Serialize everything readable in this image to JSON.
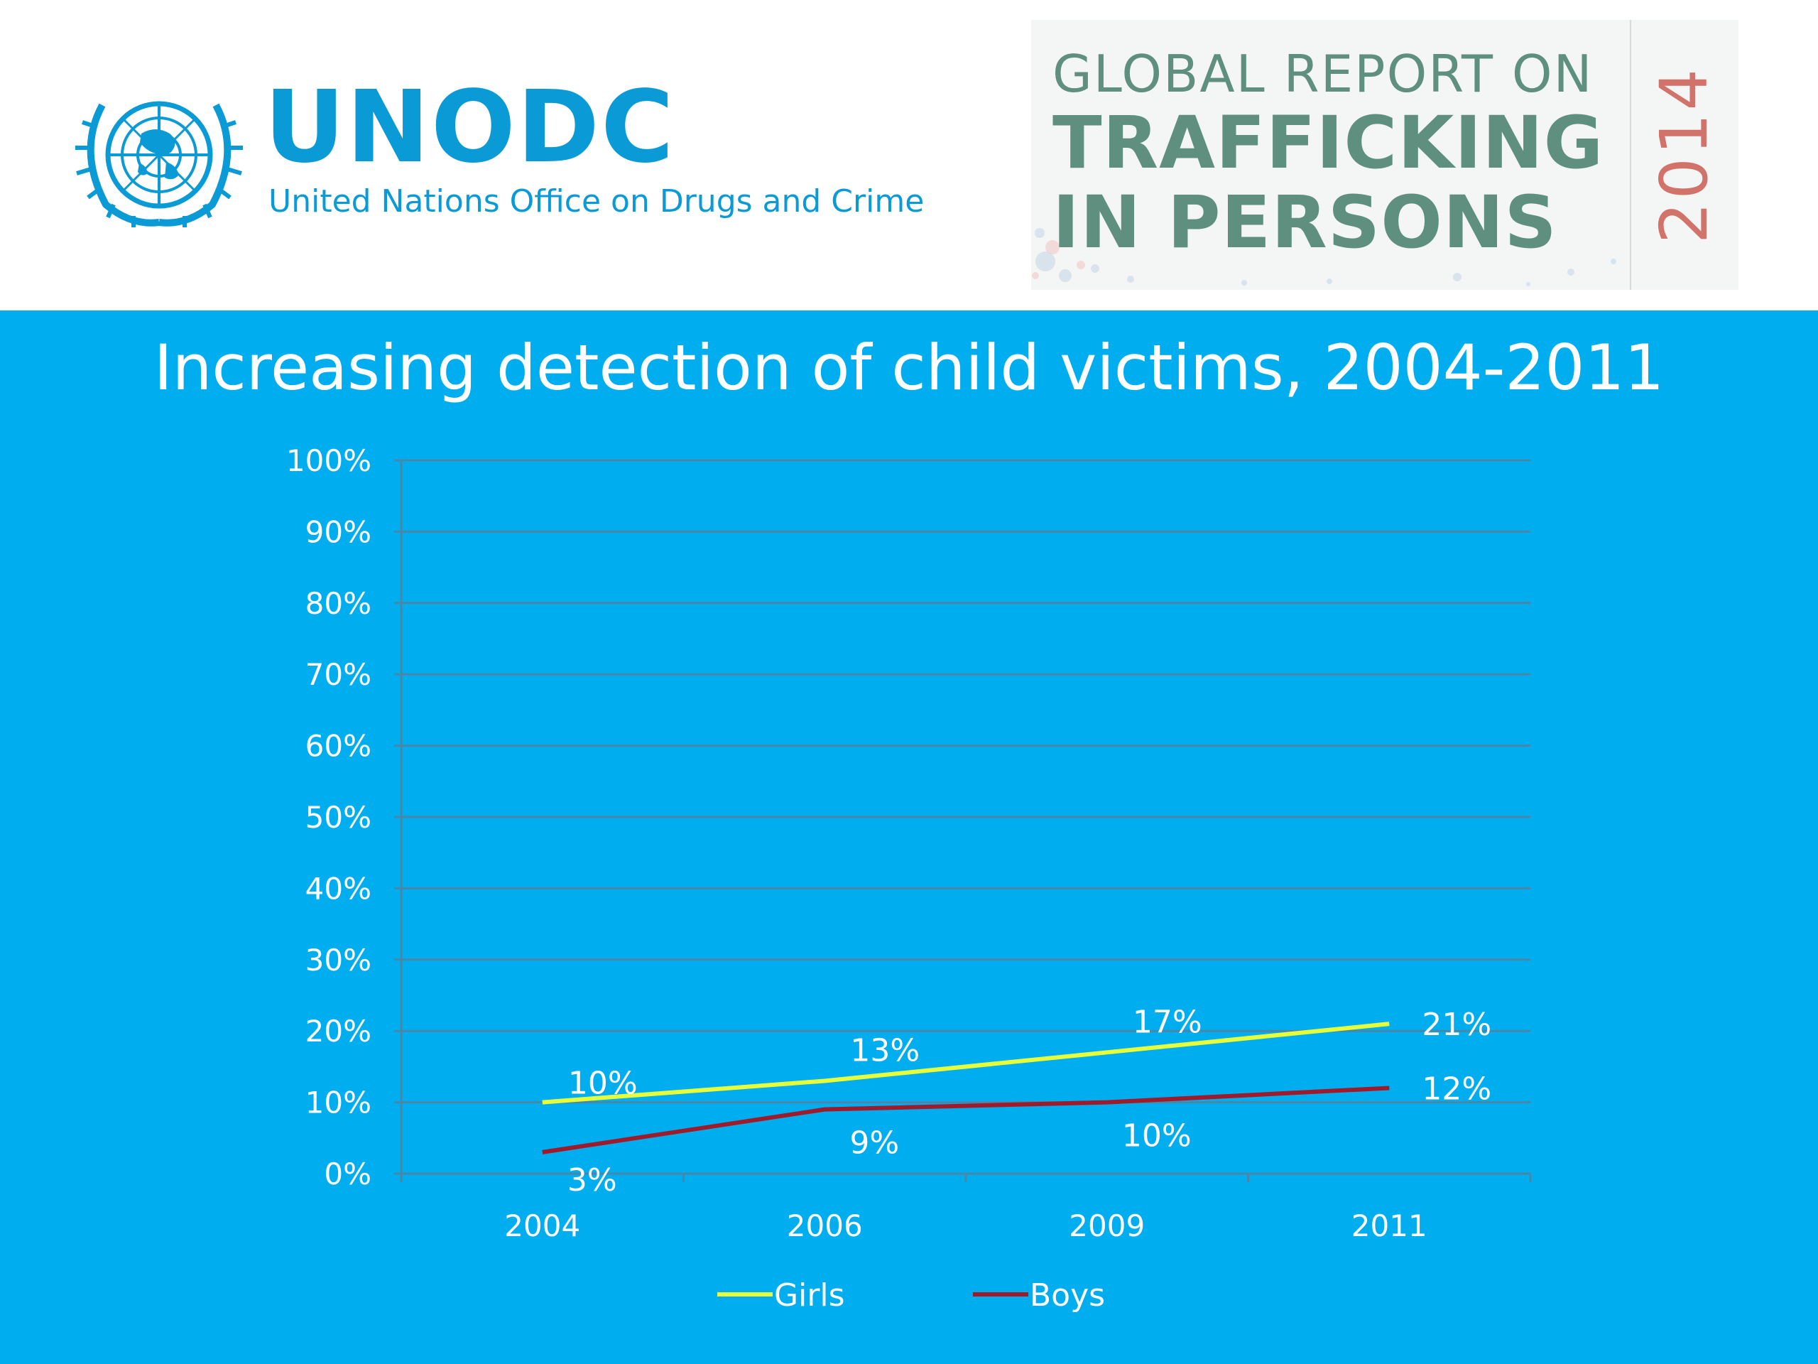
{
  "header": {
    "org_acronym": "UNODC",
    "org_name": "United Nations Office on Drugs and Crime",
    "emblem_icon": "un-emblem-icon",
    "report_line1": "GLOBAL REPORT ON",
    "report_line2": "TRAFFICKING",
    "report_line3": "IN PERSONS",
    "report_year": "2014"
  },
  "colors": {
    "panel_bg": "#00aeef",
    "brand_blue": "#0a9ad6",
    "report_green": "#5f8f7e",
    "report_year": "#d2736b",
    "girls_line": "#e6ff3a",
    "boys_line": "#9e1b2c",
    "grid": "#4a86a8"
  },
  "chart_data": {
    "type": "line",
    "title": "Increasing detection of child victims, 2004-2011",
    "xlabel": "",
    "ylabel": "",
    "categories": [
      "2004",
      "2006",
      "2009",
      "2011"
    ],
    "ylim": [
      0,
      100
    ],
    "y_ticks": [
      "0%",
      "10%",
      "20%",
      "30%",
      "40%",
      "50%",
      "60%",
      "70%",
      "80%",
      "90%",
      "100%"
    ],
    "grid": true,
    "legend": "bottom",
    "series": [
      {
        "name": "Girls",
        "values": [
          10,
          13,
          17,
          21
        ],
        "labels": [
          "10%",
          "13%",
          "17%",
          "21%"
        ],
        "color": "#e6ff3a"
      },
      {
        "name": "Boys",
        "values": [
          3,
          9,
          10,
          12
        ],
        "labels": [
          "3%",
          "9%",
          "10%",
          "12%"
        ],
        "color": "#9e1b2c"
      }
    ]
  }
}
